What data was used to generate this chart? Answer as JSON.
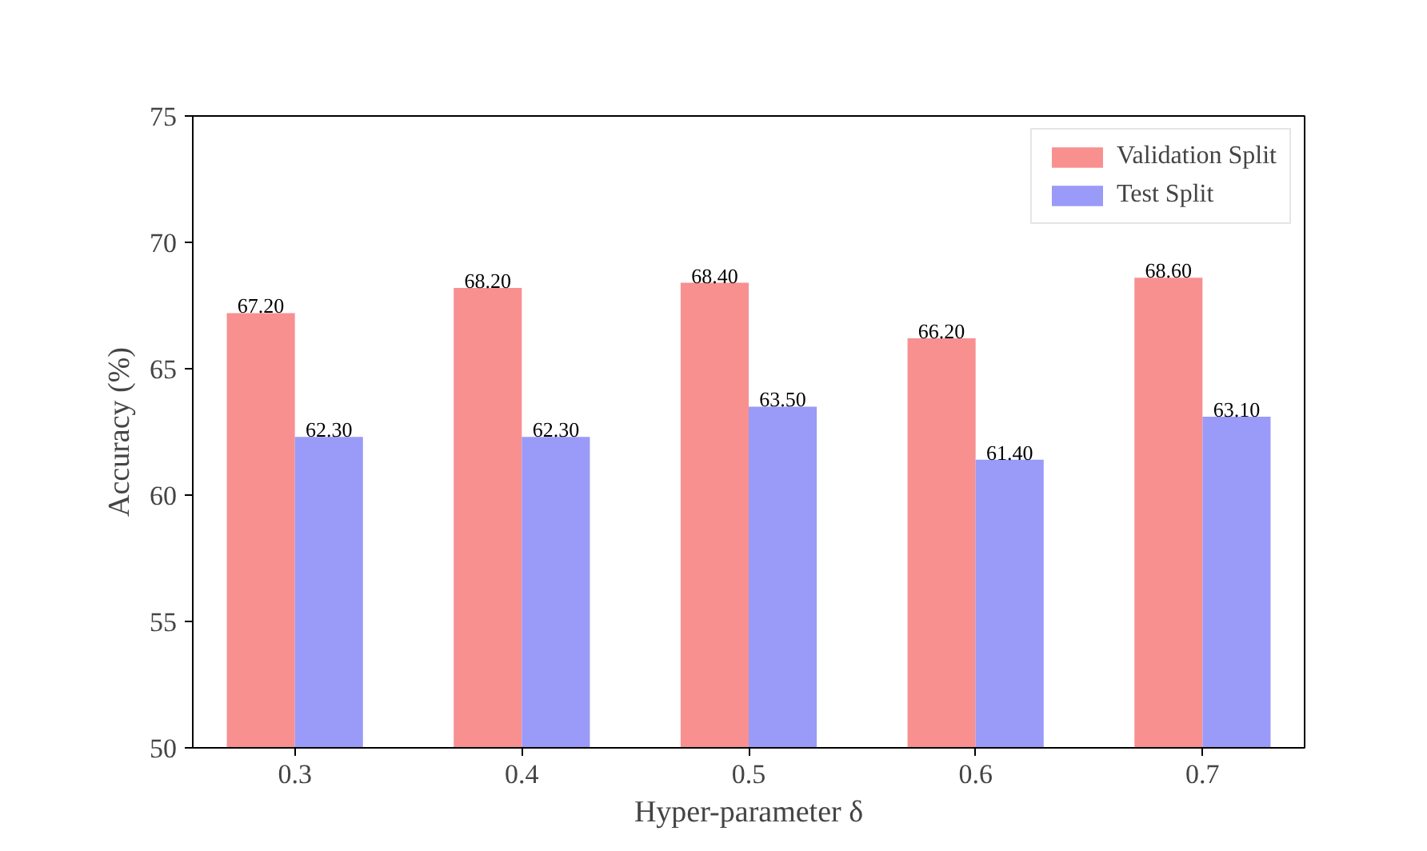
{
  "chart_data": {
    "type": "bar",
    "xlabel": "Hyper-parameter δ",
    "ylabel": "Accuracy (%)",
    "categories": [
      "0.3",
      "0.4",
      "0.5",
      "0.6",
      "0.7"
    ],
    "series": [
      {
        "name": "Validation Split",
        "color": "#f89090",
        "values": [
          67.2,
          68.2,
          68.4,
          66.2,
          68.6
        ],
        "value_labels": [
          "67.20",
          "68.20",
          "68.40",
          "66.20",
          "68.60"
        ]
      },
      {
        "name": "Test Split",
        "color": "#9a9af8",
        "values": [
          62.3,
          62.3,
          63.5,
          61.4,
          63.1
        ],
        "value_labels": [
          "62.30",
          "62.30",
          "63.50",
          "61.40",
          "63.10"
        ]
      }
    ],
    "ylim": [
      50,
      75
    ],
    "yticks": [
      50,
      55,
      60,
      65,
      70,
      75
    ],
    "grid": false,
    "legend": "top right"
  }
}
